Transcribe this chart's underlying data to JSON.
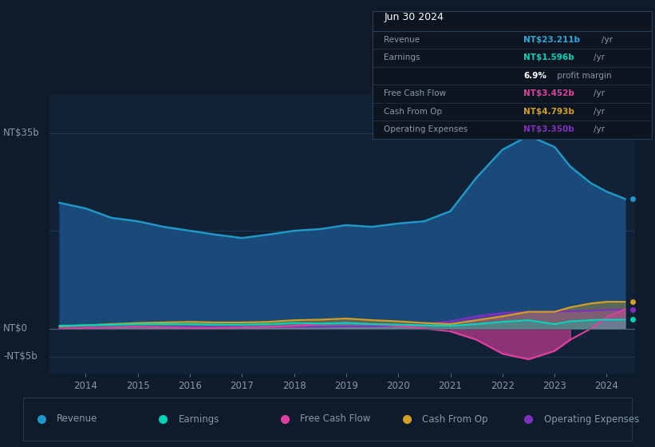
{
  "background_color": "#0d1b2a",
  "plot_bg_color": "#112236",
  "grid_color": "#1e3a52",
  "text_color": "#8899aa",
  "ylabel_top": "NT$35b",
  "ylabel_zero": "NT$0",
  "ylabel_neg": "-NT$5b",
  "years": [
    2013.5,
    2014.0,
    2014.5,
    2015.0,
    2015.5,
    2016.0,
    2016.5,
    2017.0,
    2017.5,
    2018.0,
    2018.5,
    2019.0,
    2019.5,
    2020.0,
    2020.5,
    2021.0,
    2021.5,
    2022.0,
    2022.5,
    2023.0,
    2023.3,
    2023.7,
    2024.0,
    2024.35
  ],
  "revenue": [
    22.5,
    21.5,
    19.8,
    19.2,
    18.2,
    17.5,
    16.8,
    16.2,
    16.8,
    17.5,
    17.8,
    18.5,
    18.2,
    18.8,
    19.2,
    21.0,
    27.0,
    32.0,
    34.5,
    32.5,
    29.0,
    26.0,
    24.5,
    23.211
  ],
  "earnings": [
    0.5,
    0.6,
    0.7,
    0.8,
    0.8,
    0.8,
    0.7,
    0.7,
    0.8,
    1.0,
    0.9,
    1.0,
    0.8,
    0.7,
    0.6,
    0.5,
    0.8,
    1.2,
    1.5,
    0.8,
    1.3,
    1.5,
    1.596,
    1.596
  ],
  "free_cash_flow": [
    0.0,
    0.1,
    0.2,
    0.3,
    0.2,
    0.1,
    0.1,
    0.2,
    0.3,
    0.5,
    0.8,
    1.0,
    0.8,
    0.5,
    0.0,
    -0.5,
    -2.0,
    -4.5,
    -5.5,
    -4.0,
    -2.0,
    0.0,
    2.0,
    3.452
  ],
  "cash_from_op": [
    0.4,
    0.6,
    0.8,
    1.0,
    1.1,
    1.2,
    1.1,
    1.1,
    1.2,
    1.5,
    1.6,
    1.8,
    1.5,
    1.3,
    1.0,
    0.8,
    1.5,
    2.2,
    3.0,
    3.0,
    3.8,
    4.5,
    4.793,
    4.793
  ],
  "operating_expenses": [
    0.1,
    0.2,
    0.2,
    0.3,
    0.3,
    0.3,
    0.3,
    0.3,
    0.3,
    0.3,
    0.3,
    0.4,
    0.4,
    0.5,
    0.8,
    1.3,
    2.2,
    2.8,
    3.0,
    3.0,
    3.1,
    3.2,
    3.35,
    3.35
  ],
  "revenue_color": "#2196c8",
  "revenue_fill": "#1a4a7a",
  "earnings_color": "#00d4bb",
  "free_cash_flow_color": "#e040a0",
  "cash_from_op_color": "#d4a020",
  "operating_expenses_color": "#8030c0",
  "ylim": [
    -8,
    42
  ],
  "xlim": [
    2013.3,
    2024.55
  ],
  "xticks": [
    2014,
    2015,
    2016,
    2017,
    2018,
    2019,
    2020,
    2021,
    2022,
    2023,
    2024
  ],
  "tooltip_title": "Jun 30 2024",
  "tooltip_rows": [
    {
      "label": "Revenue",
      "value": "NT$23.211b",
      "unit": "/yr",
      "value_color": "#29a8e0",
      "label_color": "#8899aa"
    },
    {
      "label": "Earnings",
      "value": "NT$1.596b",
      "unit": "/yr",
      "value_color": "#00d4bb",
      "label_color": "#8899aa"
    },
    {
      "label": "",
      "value": "6.9%",
      "unit": " profit margin",
      "value_color": "#ffffff",
      "label_color": "#8899aa"
    },
    {
      "label": "Free Cash Flow",
      "value": "NT$3.452b",
      "unit": "/yr",
      "value_color": "#e040a0",
      "label_color": "#8899aa"
    },
    {
      "label": "Cash From Op",
      "value": "NT$4.793b",
      "unit": "/yr",
      "value_color": "#d4a020",
      "label_color": "#8899aa"
    },
    {
      "label": "Operating Expenses",
      "value": "NT$3.350b",
      "unit": "/yr",
      "value_color": "#8030c0",
      "label_color": "#8899aa"
    }
  ],
  "legend_items": [
    {
      "label": "Revenue",
      "color": "#2196c8"
    },
    {
      "label": "Earnings",
      "color": "#00d4bb"
    },
    {
      "label": "Free Cash Flow",
      "color": "#e040a0"
    },
    {
      "label": "Cash From Op",
      "color": "#d4a020"
    },
    {
      "label": "Operating Expenses",
      "color": "#8030c0"
    }
  ]
}
